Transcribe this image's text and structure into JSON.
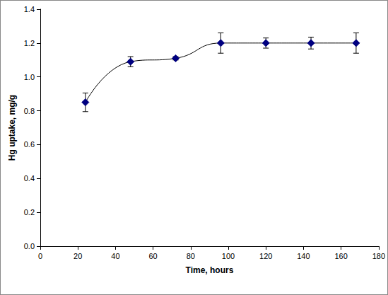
{
  "chart_data": {
    "type": "line",
    "x_label": "Time, hours",
    "y_label": "Hg uptake, mg/g",
    "x": [
      24,
      48,
      72,
      96,
      120,
      144,
      168
    ],
    "values": [
      0.85,
      1.09,
      1.11,
      1.2,
      1.2,
      1.2,
      1.2
    ],
    "errors": [
      0.055,
      0.03,
      0.01,
      0.06,
      0.03,
      0.035,
      0.06
    ],
    "color": "#000080",
    "marker": "diamond",
    "line_style": "smooth",
    "xlim": [
      0,
      180
    ],
    "xticks": [
      0,
      20,
      40,
      60,
      80,
      100,
      120,
      140,
      160,
      180
    ],
    "ylim": [
      0,
      1.4
    ],
    "yticks": [
      {
        "value": 0,
        "label": "0.0"
      },
      0.2,
      0.4,
      0.6,
      0.8,
      {
        "value": 1,
        "label": "1.0"
      },
      1.2,
      1.4
    ],
    "grid": false
  }
}
